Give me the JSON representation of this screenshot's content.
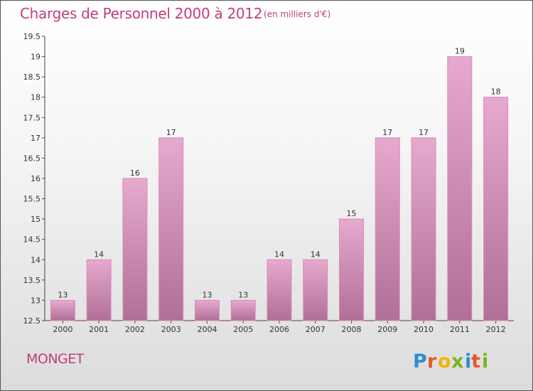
{
  "title": "Charges de Personnel 2000 à 2012",
  "subtitle": "(en milliers d'€)",
  "town": "MONGET",
  "brand": "Proxiti",
  "colors": {
    "accent": "#c23d7e",
    "bar_top": "#e7a9ce",
    "bar_bottom": "#b06f96"
  },
  "chart_data": {
    "type": "bar",
    "title": "Charges de Personnel 2000 à 2012",
    "subtitle": "(en milliers d'€)",
    "categories": [
      "2000",
      "2001",
      "2002",
      "2003",
      "2004",
      "2005",
      "2006",
      "2007",
      "2008",
      "2009",
      "2010",
      "2011",
      "2012"
    ],
    "values": [
      13,
      14,
      16,
      17,
      13,
      13,
      14,
      14,
      15,
      17,
      17,
      19,
      18
    ],
    "ylim": [
      12.5,
      19.5
    ],
    "yticks": [
      "12.5",
      "13",
      "13.5",
      "14",
      "14.5",
      "15",
      "15.5",
      "16",
      "16.5",
      "17",
      "17.5",
      "18",
      "18.5",
      "19",
      "19.5"
    ],
    "grid": false,
    "legend": "none",
    "data_labels": true
  }
}
